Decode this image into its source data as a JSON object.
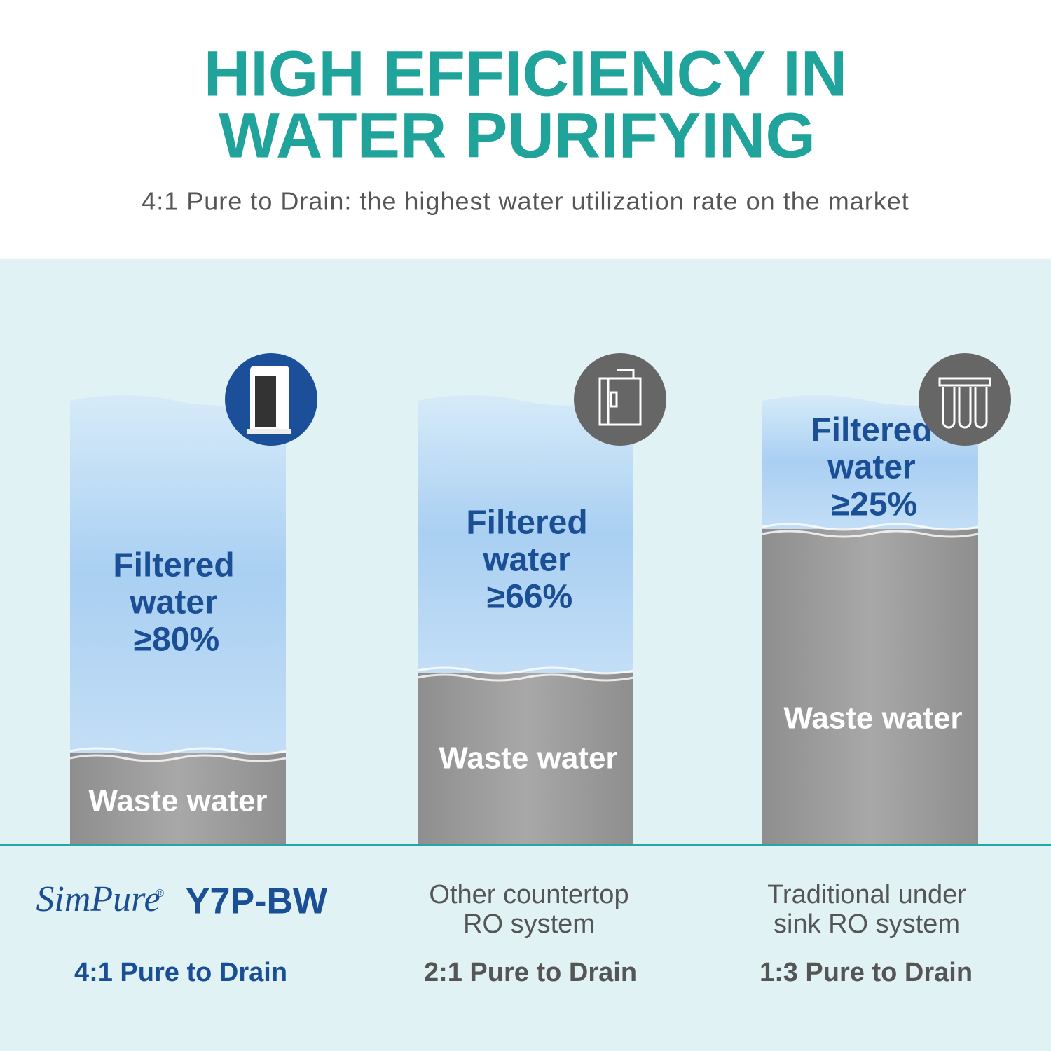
{
  "header": {
    "title_lines": [
      "HIGH EFFICIENCY IN",
      "WATER PURIFYING"
    ],
    "subtitle": "4:1 Pure to Drain: the highest water utilization rate on the market"
  },
  "columns": [
    {
      "filtered_lines": [
        "Filtered",
        "water",
        "≥80%"
      ],
      "waste": "Waste water",
      "brand": "SimPure",
      "brand_mark": "®",
      "model": "Y7P-BW",
      "ratio": "4:1 Pure to Drain"
    },
    {
      "filtered_lines": [
        "Filtered",
        "water",
        "≥66%"
      ],
      "waste": "Waste water",
      "description_lines": [
        "Other countertop",
        "RO system"
      ],
      "ratio": "2:1 Pure to Drain"
    },
    {
      "filtered_lines": [
        "Filtered",
        "water",
        "≥25%"
      ],
      "waste": "Waste water",
      "description_lines": [
        "Traditional under",
        "sink RO system"
      ],
      "ratio": "1:3 Pure to Drain"
    }
  ]
}
